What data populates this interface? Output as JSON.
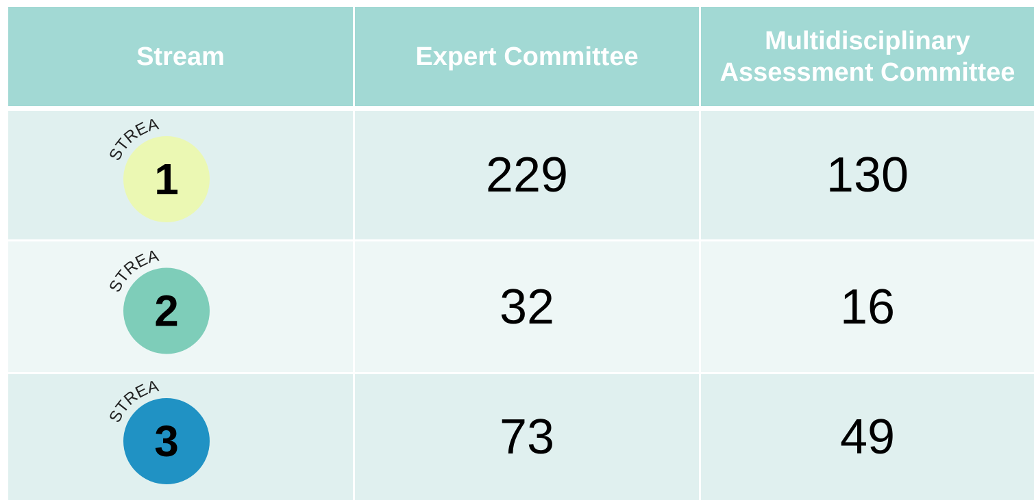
{
  "table": {
    "header": [
      "Stream",
      "Expert Committee",
      "Multidisciplinary Assessment Committee"
    ],
    "rows": [
      {
        "stream": {
          "label": "STREAM",
          "number": 1,
          "color": "#ebf8b3"
        },
        "expert": 229,
        "multidisciplinary": 130
      },
      {
        "stream": {
          "label": "STREAM",
          "number": 2,
          "color": "#7ecdb9"
        },
        "expert": 32,
        "multidisciplinary": 16
      },
      {
        "stream": {
          "label": "STREAM",
          "number": 3,
          "color": "#2092c4"
        },
        "expert": 73,
        "multidisciplinary": 49
      }
    ]
  }
}
